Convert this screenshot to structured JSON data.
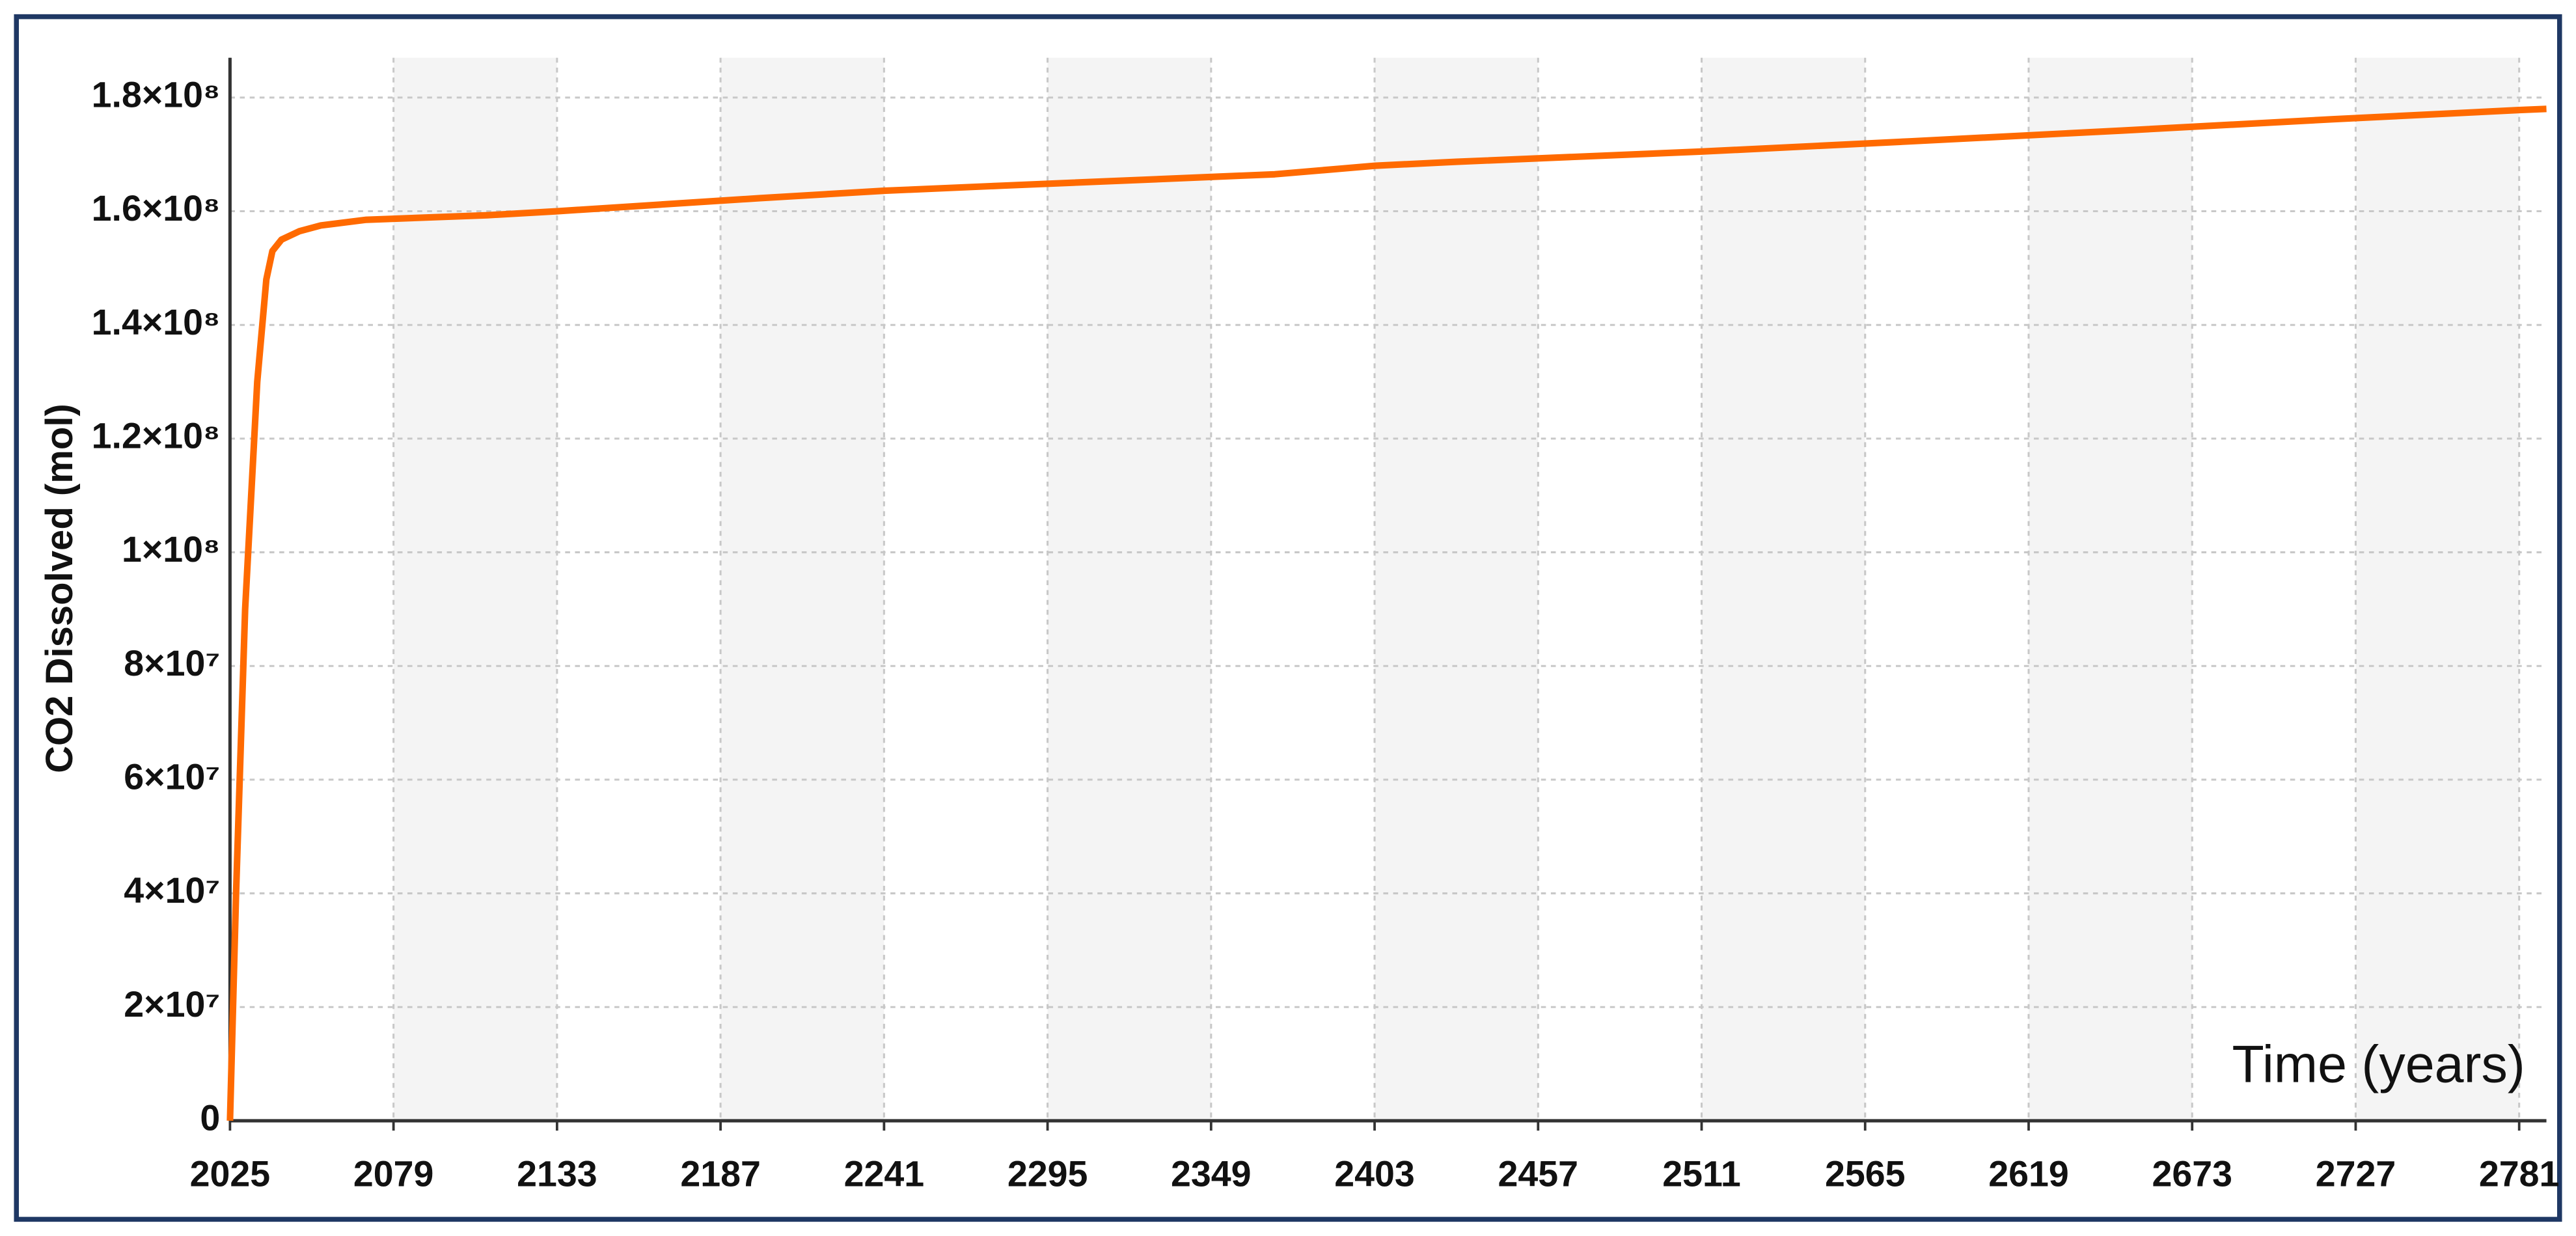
{
  "chart_data": {
    "type": "line",
    "y_label": "CO2 Dissolved (mol)",
    "x_label": "Time (years)",
    "xlim": [
      2025,
      2790
    ],
    "ylim": [
      0,
      187000000
    ],
    "xticks": [
      2025,
      2079,
      2133,
      2187,
      2241,
      2295,
      2349,
      2403,
      2457,
      2511,
      2565,
      2619,
      2673,
      2727,
      2781
    ],
    "yticks": [
      0,
      {
        "value": 20000000,
        "label": "2×10⁷"
      },
      {
        "value": 40000000,
        "label": "4×10⁷"
      },
      {
        "value": 60000000,
        "label": "6×10⁷"
      },
      {
        "value": 80000000,
        "label": "8×10⁷"
      },
      {
        "value": 100000000,
        "label": "1×10⁸"
      },
      {
        "value": 120000000,
        "label": "1.2×10⁸"
      },
      {
        "value": 140000000,
        "label": "1.4×10⁸"
      },
      {
        "value": 160000000,
        "label": "1.6×10⁸"
      },
      {
        "value": 180000000,
        "label": "1.8×10⁸"
      }
    ],
    "grid": true,
    "series": [
      {
        "color": "#ff6a00",
        "x": [
          2025,
          2027,
          2030,
          2034,
          2037,
          2039,
          2042,
          2048,
          2055,
          2070,
          2110,
          2133,
          2200,
          2241,
          2280,
          2370,
          2403,
          2430,
          2511,
          2580,
          2650,
          2720,
          2781,
          2790
        ],
        "values": [
          0,
          40000000,
          90000000,
          130000000,
          148000000,
          153000000,
          155000000,
          156500000,
          157500000,
          158500000,
          159300000,
          160000000,
          162300000,
          163600000,
          164500000,
          166500000,
          168000000,
          168700000,
          170500000,
          172300000,
          174200000,
          176200000,
          177800000,
          178000000
        ]
      }
    ]
  }
}
